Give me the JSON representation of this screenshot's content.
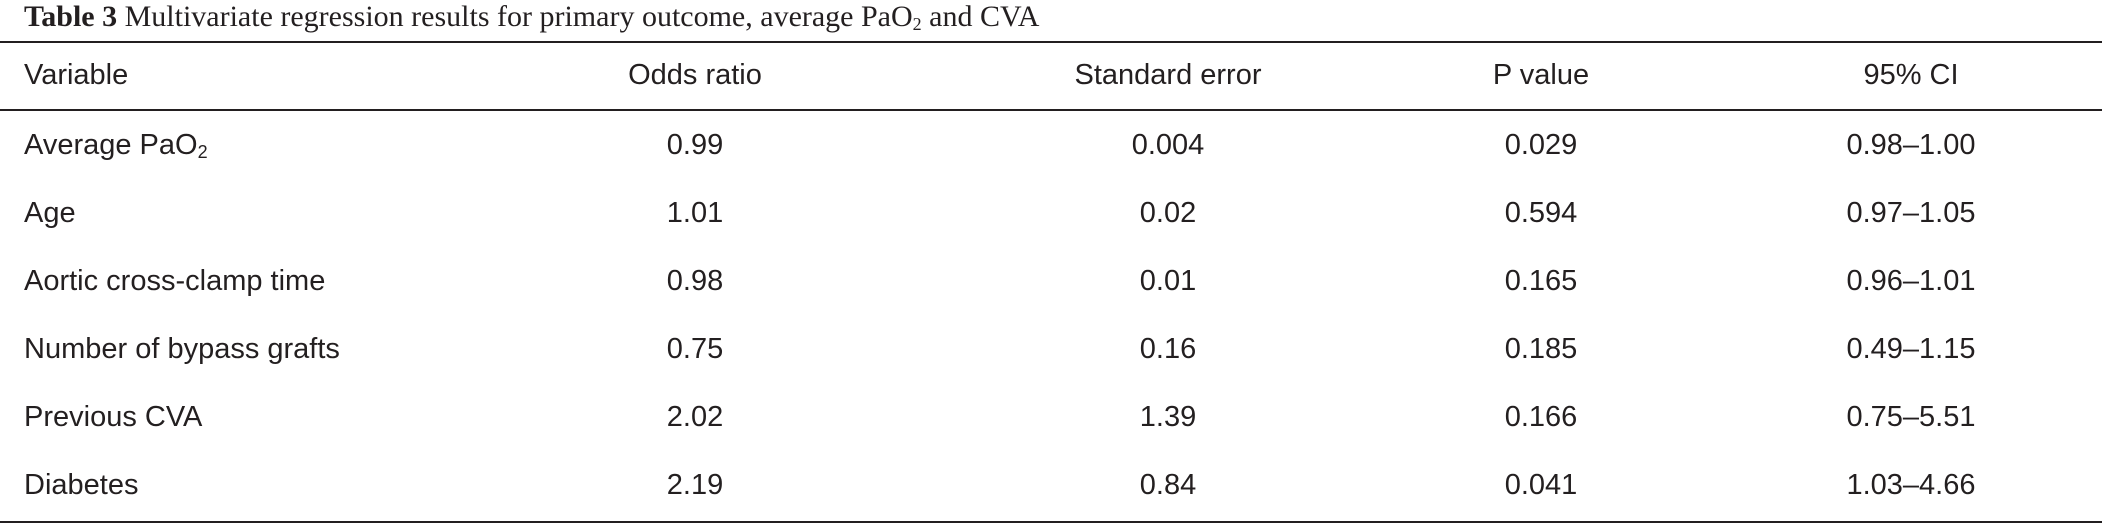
{
  "caption": {
    "label": "Table 3",
    "text_prefix": "Multivariate regression results for primary outcome, average PaO",
    "text_subscript": "2",
    "text_suffix": " and CVA"
  },
  "table": {
    "headers": [
      "Variable",
      "Odds ratio",
      "Standard error",
      "P value",
      "95% CI"
    ],
    "rows": [
      {
        "variable": "Average PaO",
        "variable_sub": "2",
        "odds_ratio": "0.99",
        "standard_error": "0.004",
        "p_value": "0.029",
        "ci": "0.98–1.00"
      },
      {
        "variable": "Age",
        "variable_sub": "",
        "odds_ratio": "1.01",
        "standard_error": "0.02",
        "p_value": "0.594",
        "ci": "0.97–1.05"
      },
      {
        "variable": "Aortic cross-clamp time",
        "variable_sub": "",
        "odds_ratio": "0.98",
        "standard_error": "0.01",
        "p_value": "0.165",
        "ci": "0.96–1.01"
      },
      {
        "variable": "Number of bypass grafts",
        "variable_sub": "",
        "odds_ratio": "0.75",
        "standard_error": "0.16",
        "p_value": "0.185",
        "ci": "0.49–1.15"
      },
      {
        "variable": "Previous CVA",
        "variable_sub": "",
        "odds_ratio": "2.02",
        "standard_error": "1.39",
        "p_value": "0.166",
        "ci": "0.75–5.51"
      },
      {
        "variable": "Diabetes",
        "variable_sub": "",
        "odds_ratio": "2.19",
        "standard_error": "0.84",
        "p_value": "0.041",
        "ci": "1.03–4.66"
      }
    ]
  }
}
